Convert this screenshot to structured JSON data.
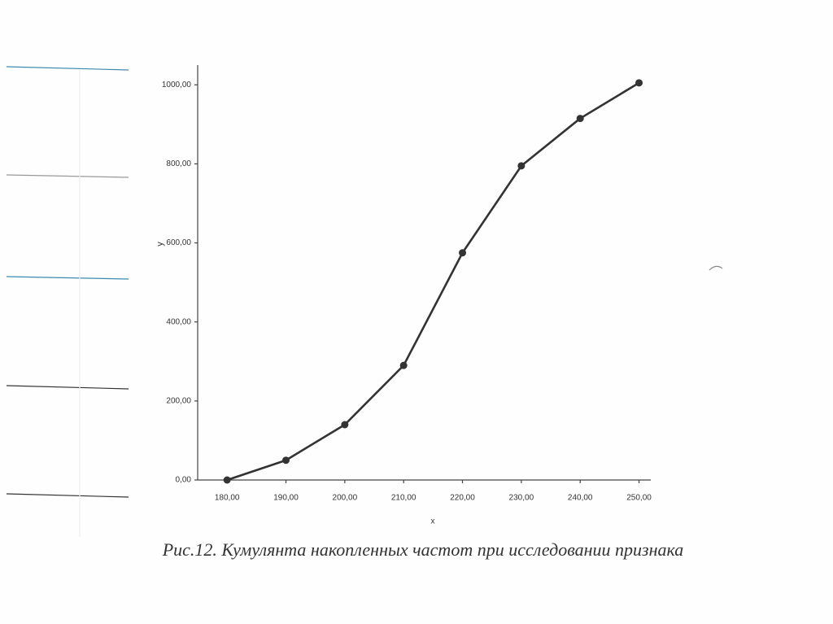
{
  "chart_data": {
    "type": "line",
    "caption": "Рис.12. Кумулянта накопленных частот при исследовании признака",
    "xlabel": "x",
    "ylabel": "y",
    "x": [
      180,
      190,
      200,
      210,
      220,
      230,
      240,
      250
    ],
    "series": [
      {
        "color": "#333333",
        "values": [
          0,
          50,
          140,
          290,
          575,
          795,
          915,
          1005
        ]
      }
    ],
    "xlim": [
      175,
      252
    ],
    "ylim": [
      0,
      1050
    ],
    "xticks": [
      {
        "value": 180,
        "label": "180,00"
      },
      {
        "value": 190,
        "label": "190,00"
      },
      {
        "value": 200,
        "label": "200,00"
      },
      {
        "value": 210,
        "label": "210,00"
      },
      {
        "value": 220,
        "label": "220,00"
      },
      {
        "value": 230,
        "label": "230,00"
      },
      {
        "value": 240,
        "label": "240,00"
      },
      {
        "value": 250,
        "label": "250,00"
      }
    ],
    "yticks": [
      {
        "value": 0,
        "label": "0,00"
      },
      {
        "value": 200,
        "label": "200,00"
      },
      {
        "value": 400,
        "label": "400,00"
      },
      {
        "value": 600,
        "label": "600,00"
      },
      {
        "value": 800,
        "label": "800,00"
      },
      {
        "value": 1000,
        "label": "1000,00"
      }
    ]
  }
}
